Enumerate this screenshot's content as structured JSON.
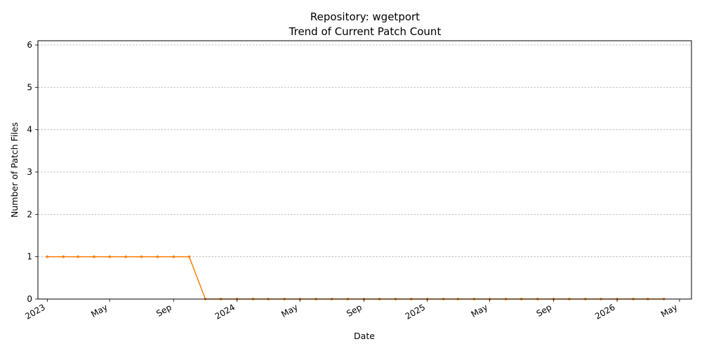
{
  "chart_data": {
    "type": "line",
    "title": "Repository: wgetport",
    "subtitle": "Trend of Current Patch Count",
    "xlabel": "Date",
    "ylabel": "Number of Patch Files",
    "ylim": [
      0,
      6.1
    ],
    "yticks": [
      0,
      1,
      2,
      3,
      4,
      5,
      6
    ],
    "xlim": [
      "2022-12-14",
      "2026-05-24"
    ],
    "xticks": [
      {
        "date": "2023-01-01",
        "label": "2023"
      },
      {
        "date": "2023-05-01",
        "label": "May"
      },
      {
        "date": "2023-09-01",
        "label": "Sep"
      },
      {
        "date": "2024-01-01",
        "label": "2024"
      },
      {
        "date": "2024-05-01",
        "label": "May"
      },
      {
        "date": "2024-09-01",
        "label": "Sep"
      },
      {
        "date": "2025-01-01",
        "label": "2025"
      },
      {
        "date": "2025-05-01",
        "label": "May"
      },
      {
        "date": "2025-09-01",
        "label": "Sep"
      },
      {
        "date": "2026-01-01",
        "label": "2026"
      },
      {
        "date": "2026-05-01",
        "label": "May"
      }
    ],
    "grid": "y",
    "color": "#ff7f0e",
    "series": [
      {
        "x": [
          "2023-01-01",
          "2023-02-01",
          "2023-03-01",
          "2023-04-01",
          "2023-05-01",
          "2023-06-01",
          "2023-07-01",
          "2023-08-01",
          "2023-09-01",
          "2023-10-01",
          "2023-11-01",
          "2023-12-01",
          "2024-01-01",
          "2024-02-01",
          "2024-03-01",
          "2024-04-01",
          "2024-05-01",
          "2024-06-01",
          "2024-07-01",
          "2024-08-01",
          "2024-09-01",
          "2024-10-01",
          "2024-11-01",
          "2024-12-01",
          "2025-01-01",
          "2025-02-01",
          "2025-03-01",
          "2025-04-01",
          "2025-05-01",
          "2025-06-01",
          "2025-07-01",
          "2025-08-01",
          "2025-09-01",
          "2025-10-01",
          "2025-11-01",
          "2025-12-01",
          "2026-01-01",
          "2026-02-01",
          "2026-03-01",
          "2026-04-01"
        ],
        "values": [
          1,
          1,
          1,
          1,
          1,
          1,
          1,
          1,
          1,
          1,
          0,
          0,
          0,
          0,
          0,
          0,
          0,
          0,
          0,
          0,
          0,
          0,
          0,
          0,
          0,
          0,
          0,
          0,
          0,
          0,
          0,
          0,
          0,
          0,
          0,
          0,
          0,
          0,
          0,
          0
        ]
      }
    ]
  }
}
